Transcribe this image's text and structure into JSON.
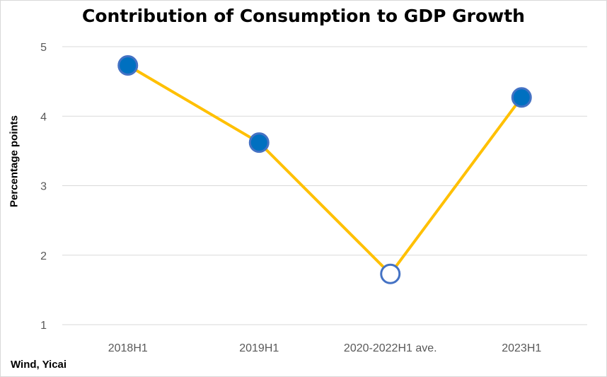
{
  "chart_data": {
    "type": "line",
    "title": "Contribution of Consumption to GDP Growth",
    "xlabel": "",
    "ylabel": "Percentage points",
    "categories": [
      "2018H1",
      "2019H1",
      "2020-2022H1 ave.",
      "2023H1"
    ],
    "series": [
      {
        "values": [
          4.73,
          3.62,
          1.73,
          4.27
        ]
      }
    ],
    "ylim": [
      1,
      5
    ],
    "yticks": [
      1,
      2,
      3,
      4,
      5
    ],
    "grid": true,
    "legend": "none",
    "colors": {
      "line": "#FFC000",
      "marker_fill": "#0070C0",
      "marker_edge": "#4472C4",
      "hollow_marker_fill": "#FFFFFF",
      "grid": "#D9D9D9"
    },
    "hollow_points": [
      2
    ]
  },
  "footer": {
    "source": "Wind, Yicai"
  }
}
